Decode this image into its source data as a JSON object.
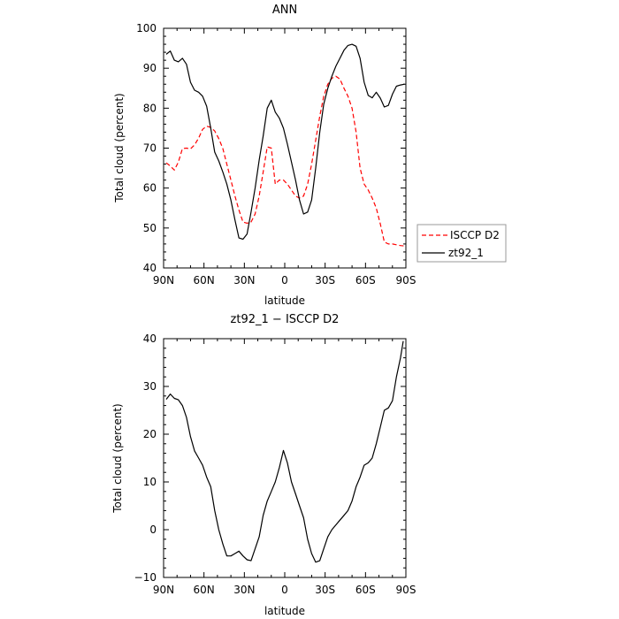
{
  "chart_data": [
    {
      "type": "line",
      "title": "ANN",
      "xlabel": "latitude",
      "ylabel": "Total cloud (percent)",
      "xlim": [
        90,
        -90
      ],
      "ylim": [
        40,
        100
      ],
      "x_ticks": [
        90,
        60,
        30,
        0,
        -30,
        -60,
        -90
      ],
      "x_tick_labels": [
        "90N",
        "60N",
        "30N",
        "0",
        "30S",
        "60S",
        "90S"
      ],
      "y_ticks": [
        40,
        50,
        60,
        70,
        80,
        90,
        100
      ],
      "y_tick_labels": [
        "40",
        "50",
        "60",
        "70",
        "80",
        "90",
        "100"
      ],
      "legend_position": "right",
      "series": [
        {
          "name": "ISCCP D2",
          "color": "#ff0000",
          "dash": "dashed",
          "x": [
            88,
            85,
            82,
            79,
            76,
            73,
            70,
            67,
            64,
            61,
            58,
            55,
            52,
            49,
            46,
            43,
            40,
            37,
            34,
            31,
            28,
            25,
            22,
            19,
            16,
            13,
            10,
            7,
            4,
            1,
            -2,
            -5,
            -8,
            -11,
            -14,
            -17,
            -20,
            -23,
            -26,
            -29,
            -32,
            -35,
            -38,
            -41,
            -44,
            -47,
            -50,
            -53,
            -56,
            -59,
            -62,
            -65,
            -68,
            -71,
            -74,
            -77,
            -80,
            -83,
            -86,
            -89
          ],
          "y": [
            66.3,
            65.5,
            64.5,
            66.5,
            69.9,
            70,
            69.8,
            70.8,
            72.5,
            74.7,
            75.5,
            75.2,
            74.3,
            72.4,
            69.9,
            66,
            62,
            58,
            54.5,
            51.5,
            51.2,
            51.5,
            53.5,
            58,
            64,
            70.3,
            70,
            61,
            62,
            62,
            61,
            59.5,
            58,
            57.5,
            58,
            61,
            66,
            72,
            78,
            83,
            86,
            87.5,
            88,
            87.3,
            85,
            83,
            80,
            74,
            65,
            61,
            59.5,
            57.5,
            55,
            51,
            46.5,
            46,
            46,
            45.8,
            45.6,
            45.5
          ]
        },
        {
          "name": "zt92_1",
          "color": "#000000",
          "dash": "solid",
          "x": [
            88,
            85,
            82,
            79,
            76,
            73,
            70,
            67,
            64,
            61,
            58,
            55,
            52,
            49,
            46,
            43,
            40,
            37,
            34,
            31,
            28,
            25,
            22,
            19,
            16,
            13,
            10,
            7,
            4,
            1,
            -2,
            -5,
            -8,
            -11,
            -14,
            -17,
            -20,
            -23,
            -26,
            -29,
            -32,
            -35,
            -38,
            -41,
            -44,
            -47,
            -50,
            -53,
            -56,
            -59,
            -62,
            -65,
            -68,
            -71,
            -74,
            -77,
            -80,
            -83,
            -86,
            -89
          ],
          "y": [
            93.5,
            94.3,
            92,
            91.6,
            92.5,
            91,
            86.5,
            84.5,
            84,
            83,
            80.5,
            75,
            69,
            66.8,
            64,
            61,
            57,
            52,
            47.5,
            47.2,
            48.5,
            54,
            60,
            67,
            73,
            80,
            82,
            79,
            77.5,
            75,
            71,
            66.5,
            62,
            57,
            53.5,
            54,
            57,
            65,
            74,
            81,
            85,
            88,
            90.5,
            92.5,
            94.5,
            95.7,
            96,
            95.5,
            92.5,
            86.5,
            83.2,
            82.6,
            84,
            82.5,
            80.3,
            80.7,
            83.5,
            85.5,
            85.8,
            86
          ]
        }
      ]
    },
    {
      "type": "line",
      "title": "zt92_1 − ISCCP D2",
      "xlabel": "latitude",
      "ylabel": "Total cloud (percent)",
      "xlim": [
        90,
        -90
      ],
      "ylim": [
        -10,
        40
      ],
      "x_ticks": [
        90,
        60,
        30,
        0,
        -30,
        -60,
        -90
      ],
      "x_tick_labels": [
        "90N",
        "60N",
        "30N",
        "0",
        "30S",
        "60S",
        "90S"
      ],
      "y_ticks": [
        -10,
        0,
        10,
        20,
        30,
        40
      ],
      "y_tick_labels": [
        "−10",
        "0",
        "10",
        "20",
        "30",
        "40"
      ],
      "series": [
        {
          "color": "#000000",
          "dash": "solid",
          "x": [
            88,
            85,
            82,
            79,
            76,
            73,
            70,
            67,
            64,
            61,
            58,
            55,
            52,
            49,
            46,
            43,
            40,
            37,
            34,
            31,
            28,
            25,
            22,
            19,
            16,
            13,
            10,
            7,
            4,
            1,
            -2,
            -5,
            -8,
            -11,
            -14,
            -17,
            -20,
            -23,
            -26,
            -29,
            -32,
            -35,
            -38,
            -41,
            -44,
            -47,
            -50,
            -53,
            -56,
            -59,
            -62,
            -65,
            -68,
            -71,
            -74,
            -77,
            -80,
            -83,
            -86,
            -88
          ],
          "y": [
            27.3,
            28.4,
            27.5,
            27.2,
            26,
            23.5,
            19.5,
            16.5,
            15,
            13.5,
            11,
            9,
            4,
            0,
            -3,
            -5.5,
            -5.5,
            -5,
            -4.5,
            -5.5,
            -6.3,
            -6.5,
            -4,
            -1.5,
            3,
            6,
            8,
            10,
            13,
            16.6,
            14,
            10,
            7.5,
            5,
            2.5,
            -2,
            -5,
            -6.8,
            -6.5,
            -4,
            -1.5,
            0,
            1,
            2,
            3,
            4,
            6,
            9,
            11,
            13.5,
            14,
            15,
            18,
            21.5,
            25,
            25.5,
            27,
            32,
            36,
            39.5
          ]
        }
      ]
    }
  ]
}
